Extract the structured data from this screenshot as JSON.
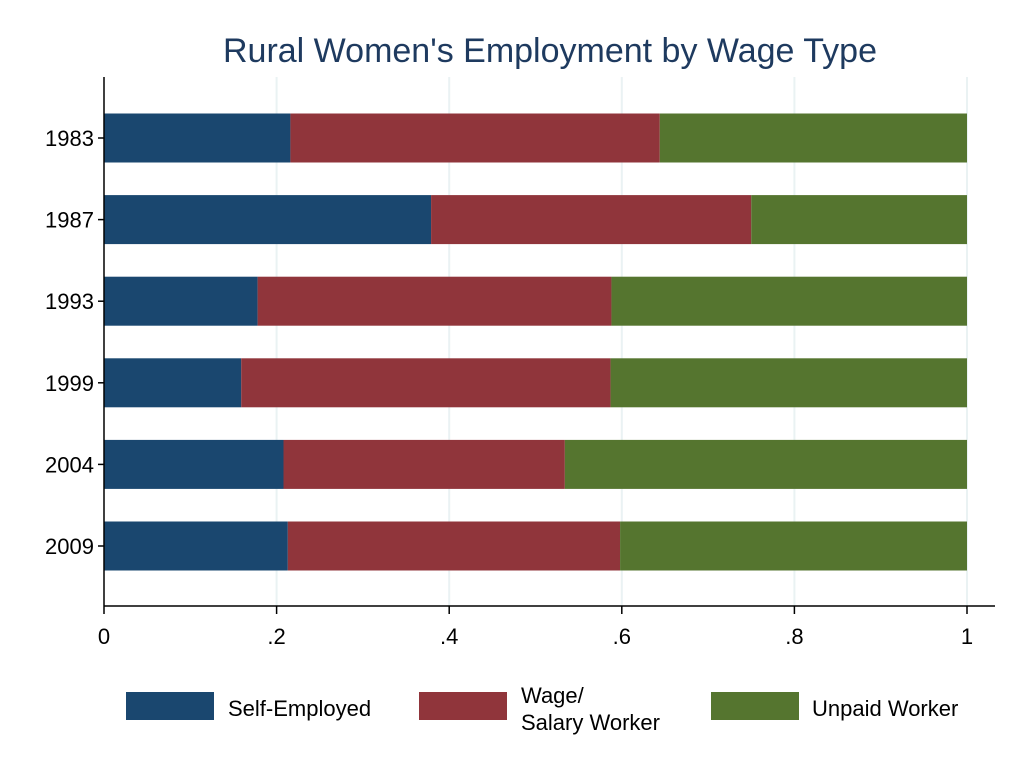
{
  "chart_data": {
    "type": "bar",
    "orientation": "horizontal",
    "stacked": true,
    "title": "Rural Women's Employment by Wage Type",
    "categories": [
      "1983",
      "1987",
      "1993",
      "1999",
      "2004",
      "2009"
    ],
    "series": [
      {
        "name": "Self-Employed",
        "color": "#1a476f",
        "values": [
          0.216,
          0.379,
          0.178,
          0.159,
          0.208,
          0.213
        ]
      },
      {
        "name": "Wage/ Salary Worker",
        "name_lines": [
          "Wage/",
          "Salary Worker"
        ],
        "color": "#90353b",
        "values": [
          0.428,
          0.371,
          0.41,
          0.428,
          0.326,
          0.385
        ]
      },
      {
        "name": "Unpaid Worker",
        "color": "#55752f",
        "values": [
          0.356,
          0.25,
          0.412,
          0.413,
          0.466,
          0.402
        ]
      }
    ],
    "xlim": [
      0,
      1
    ],
    "xticks": [
      0,
      0.2,
      0.4,
      0.6,
      0.8,
      1
    ],
    "xtick_labels": [
      "0",
      ".2",
      ".4",
      ".6",
      ".8",
      "1"
    ],
    "grid": "vertical",
    "grid_color": "#eaf2f3",
    "title_color": "#1e3a5f",
    "legend_position": "bottom",
    "xlabel": "",
    "ylabel": ""
  }
}
